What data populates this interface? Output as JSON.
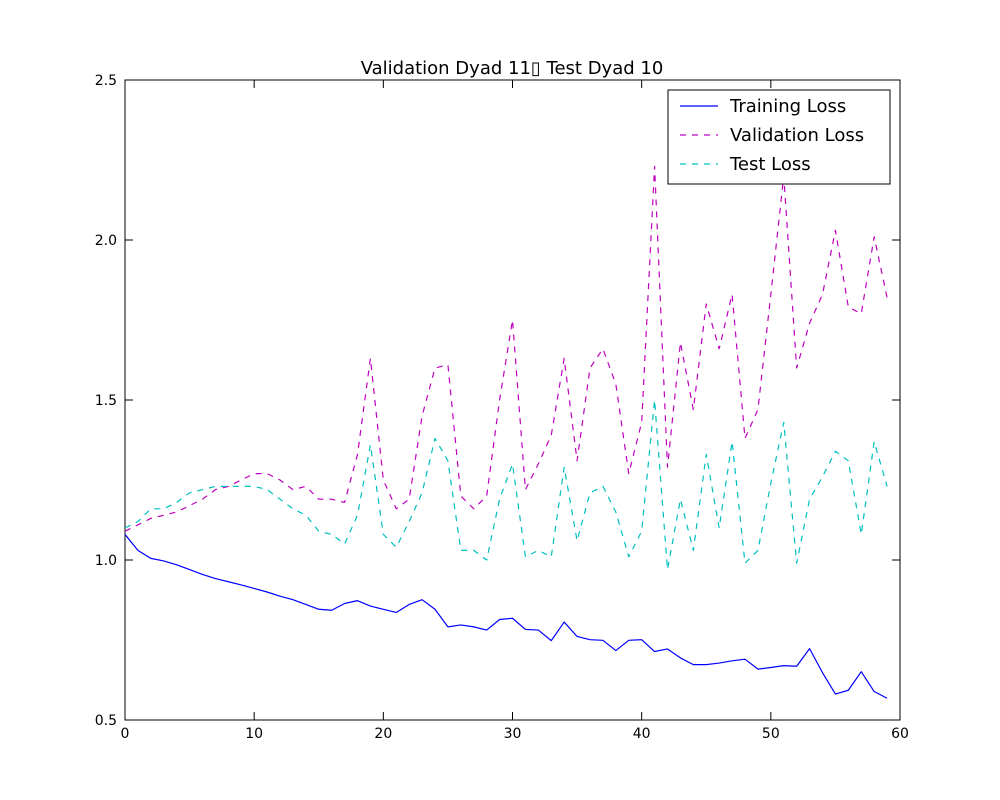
{
  "chart_data": {
    "type": "line",
    "title": "Validation Dyad 11▯ Test Dyad 10",
    "xlabel": "",
    "ylabel": "",
    "xlim": [
      0,
      60
    ],
    "ylim": [
      0.5,
      2.5
    ],
    "xticks": [
      "0",
      "10",
      "20",
      "30",
      "40",
      "50",
      "60"
    ],
    "yticks": [
      "0.5",
      "1.0",
      "1.5",
      "2.0",
      "2.5"
    ],
    "grid": false,
    "legend_position": "top-right",
    "x": [
      0,
      1,
      2,
      3,
      4,
      5,
      6,
      7,
      8,
      9,
      10,
      11,
      12,
      13,
      14,
      15,
      16,
      17,
      18,
      19,
      20,
      21,
      22,
      23,
      24,
      25,
      26,
      27,
      28,
      29,
      30,
      31,
      32,
      33,
      34,
      35,
      36,
      37,
      38,
      39,
      40,
      41,
      42,
      43,
      44,
      45,
      46,
      47,
      48,
      49,
      50,
      51,
      52,
      53,
      54,
      55,
      56,
      57,
      58,
      59
    ],
    "series": [
      {
        "name": "Training Loss",
        "color": "#0000ff",
        "style": "solid",
        "values": [
          1.08,
          1.03,
          1.005,
          0.997,
          0.985,
          0.97,
          0.955,
          0.942,
          0.932,
          0.922,
          0.911,
          0.9,
          0.887,
          0.876,
          0.861,
          0.846,
          0.843,
          0.864,
          0.873,
          0.856,
          0.846,
          0.836,
          0.861,
          0.876,
          0.846,
          0.791,
          0.797,
          0.791,
          0.781,
          0.814,
          0.818,
          0.783,
          0.781,
          0.748,
          0.806,
          0.761,
          0.751,
          0.749,
          0.717,
          0.749,
          0.751,
          0.714,
          0.722,
          0.694,
          0.673,
          0.673,
          0.678,
          0.685,
          0.69,
          0.659,
          0.664,
          0.67,
          0.668,
          0.723,
          0.648,
          0.581,
          0.593,
          0.651,
          0.589,
          0.568
        ]
      },
      {
        "name": "Validation Loss",
        "color": "#bf00bf",
        "style": "dashed",
        "values": [
          1.09,
          1.11,
          1.13,
          1.14,
          1.15,
          1.17,
          1.19,
          1.22,
          1.23,
          1.25,
          1.27,
          1.27,
          1.25,
          1.22,
          1.23,
          1.19,
          1.19,
          1.18,
          1.33,
          1.63,
          1.25,
          1.16,
          1.19,
          1.45,
          1.6,
          1.61,
          1.2,
          1.16,
          1.2,
          1.5,
          1.75,
          1.22,
          1.3,
          1.39,
          1.63,
          1.31,
          1.6,
          1.66,
          1.55,
          1.27,
          1.43,
          2.23,
          1.29,
          1.68,
          1.47,
          1.8,
          1.66,
          1.83,
          1.38,
          1.47,
          1.83,
          2.2,
          1.6,
          1.74,
          1.83,
          2.03,
          1.79,
          1.77,
          2.01,
          1.82
        ]
      },
      {
        "name": "Test Loss",
        "color": "#00bfbf",
        "style": "dashed",
        "values": [
          1.1,
          1.12,
          1.16,
          1.16,
          1.18,
          1.21,
          1.22,
          1.23,
          1.23,
          1.23,
          1.23,
          1.22,
          1.19,
          1.16,
          1.14,
          1.09,
          1.08,
          1.05,
          1.14,
          1.36,
          1.08,
          1.04,
          1.12,
          1.21,
          1.38,
          1.31,
          1.03,
          1.03,
          1.0,
          1.19,
          1.3,
          1.01,
          1.03,
          1.01,
          1.29,
          1.06,
          1.21,
          1.23,
          1.15,
          1.01,
          1.09,
          1.5,
          0.97,
          1.19,
          1.03,
          1.33,
          1.1,
          1.37,
          0.99,
          1.03,
          1.24,
          1.43,
          0.99,
          1.19,
          1.26,
          1.34,
          1.31,
          1.08,
          1.37,
          1.23
        ]
      }
    ]
  }
}
